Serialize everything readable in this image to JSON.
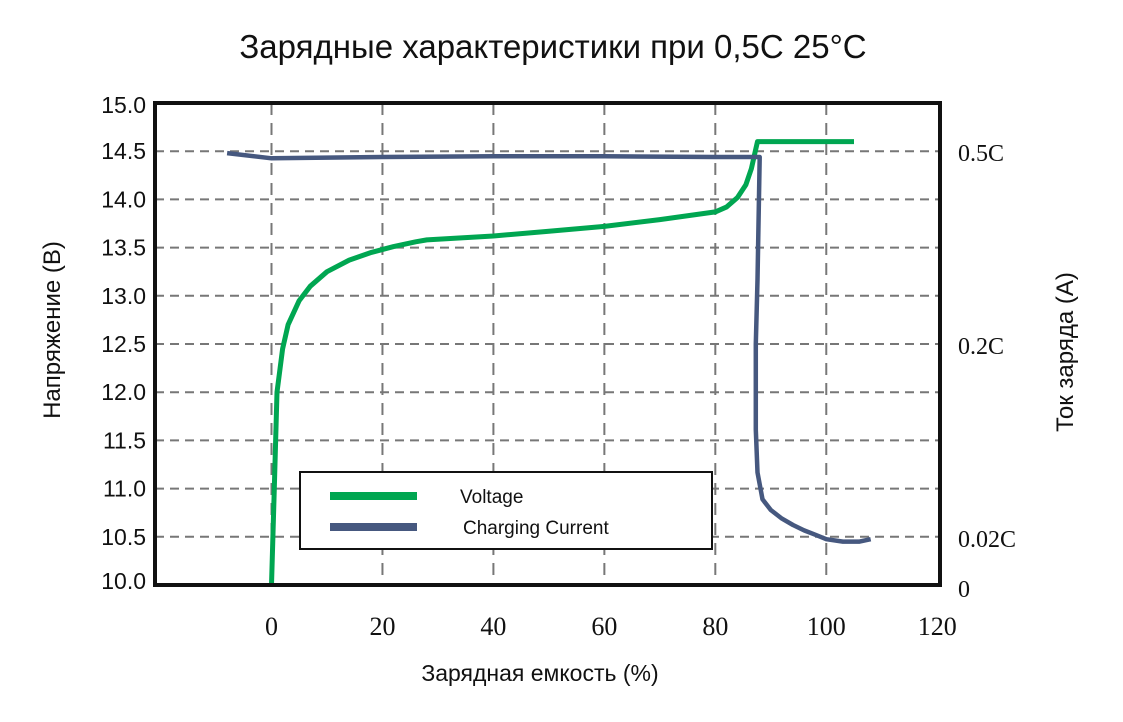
{
  "chart_data": {
    "type": "line",
    "title": "Зарядные характеристики при 0,5C 25°C",
    "xlabel": "Зарядная емкость (%)",
    "ylabel": "Напряжение (В)",
    "ylabel_right": "Ток заряда (А)",
    "xlim": [
      -21,
      120.5
    ],
    "ylim": [
      10.0,
      15.0
    ],
    "grid": true,
    "x_ticks": [
      "0",
      "20",
      "40",
      "60",
      "80",
      "100",
      "120"
    ],
    "x_tick_values": [
      0,
      20,
      40,
      60,
      80,
      100,
      120
    ],
    "y_ticks": [
      "10.0",
      "10.5",
      "11.0",
      "11.5",
      "12.0",
      "12.5",
      "13.0",
      "13.5",
      "14.0",
      "14.5",
      "15.0"
    ],
    "y_tick_values": [
      10.0,
      10.5,
      11.0,
      11.5,
      12.0,
      12.5,
      13.0,
      13.5,
      14.0,
      14.5,
      15.0
    ],
    "y_right_ticks": [
      {
        "label": "0.5C",
        "value": 0.5,
        "at_voltage": 14.5
      },
      {
        "label": "0.2C",
        "value": 0.2,
        "at_voltage": 12.5
      },
      {
        "label": "0.02C",
        "value": 0.02,
        "at_voltage": 10.5
      },
      {
        "label": "0",
        "value": 0,
        "at_voltage": 10.0
      }
    ],
    "legend": {
      "placement": "bottom-center"
    },
    "series": [
      {
        "name": "Voltage",
        "axis": "left",
        "color": "#00a651",
        "x": [
          0,
          0.5,
          1,
          2,
          3,
          5,
          7,
          10,
          14,
          18,
          22,
          26,
          28,
          40,
          50,
          60,
          70,
          80,
          82,
          84,
          85.5,
          86.5,
          87.2,
          87.6,
          105
        ],
        "y": [
          10.0,
          11.0,
          12.0,
          12.45,
          12.7,
          12.95,
          13.1,
          13.25,
          13.37,
          13.45,
          13.51,
          13.56,
          13.58,
          13.62,
          13.67,
          13.72,
          13.79,
          13.87,
          13.92,
          14.02,
          14.15,
          14.32,
          14.5,
          14.6,
          14.6
        ]
      },
      {
        "name": "Charging Current",
        "axis": "right",
        "color": "#46587f",
        "x": [
          -8,
          0,
          20,
          40,
          60,
          80,
          88,
          87.6,
          87.3,
          87.3,
          87.6,
          88.5,
          90,
          92,
          94,
          96,
          98,
          100,
          103,
          106,
          108
        ],
        "y": [
          0.497,
          0.489,
          0.491,
          0.492,
          0.492,
          0.491,
          0.491,
          0.3,
          0.2,
          0.12,
          0.08,
          0.055,
          0.045,
          0.037,
          0.031,
          0.026,
          0.022,
          0.019,
          0.018,
          0.018,
          0.019
        ]
      }
    ]
  }
}
